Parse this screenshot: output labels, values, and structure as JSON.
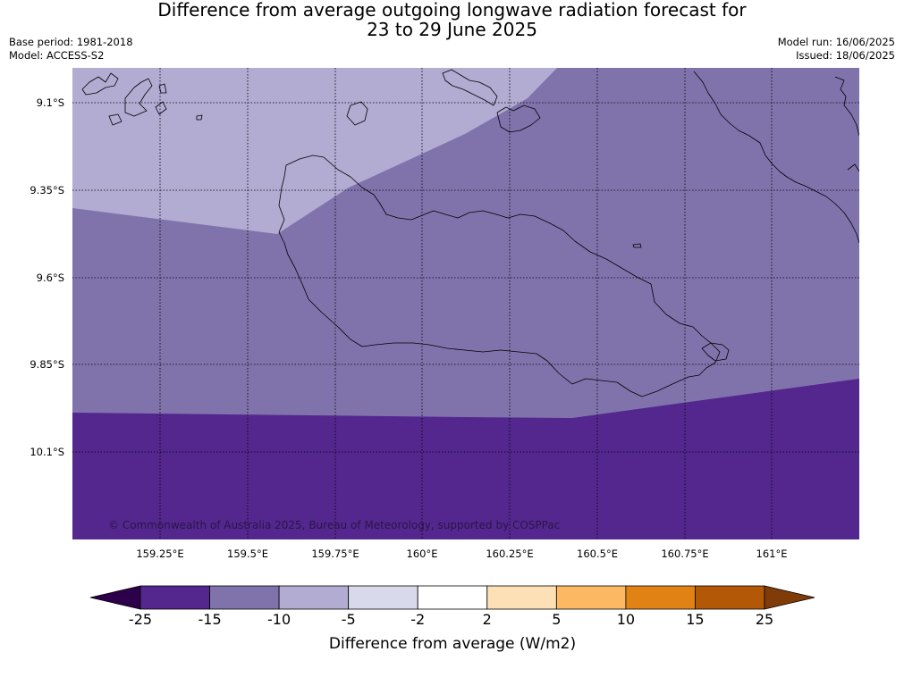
{
  "title_line1": "Difference from average outgoing longwave radiation forecast for",
  "title_line2": "23 to 29 June 2025",
  "base_period": "Base period: 1981-2018",
  "model": "Model: ACCESS-S2",
  "model_run": "Model run: 16/06/2025",
  "issued": "Issued: 18/06/2025",
  "copyright": "© Commonwealth of Australia 2025, Bureau of Meteorology, supported by COSPPac",
  "lat_labels": [
    "9.1°S",
    "9.35°S",
    "9.6°S",
    "9.85°S",
    "10.1°S"
  ],
  "lon_labels": [
    "159.25°E",
    "159.5°E",
    "159.75°E",
    "160°E",
    "160.25°E",
    "160.5°E",
    "160.75°E",
    "161°E"
  ],
  "colorbar": {
    "ticks": [
      "-25",
      "-15",
      "-10",
      "-5",
      "-2",
      "2",
      "5",
      "10",
      "15",
      "25"
    ],
    "colors": [
      "#54278f",
      "#8073ac",
      "#b2abd2",
      "#d8daeb",
      "#ffffff",
      "#fee0b6",
      "#fdb863",
      "#e08214",
      "#b35806"
    ],
    "under_color": "#2d004b",
    "over_color": "#7f3b08",
    "label": "Difference from average (W/m2)"
  },
  "map_colors": {
    "light_lavender": "#b2abd2",
    "mid_purple": "#8073ac",
    "dark_purple": "#54278f"
  }
}
